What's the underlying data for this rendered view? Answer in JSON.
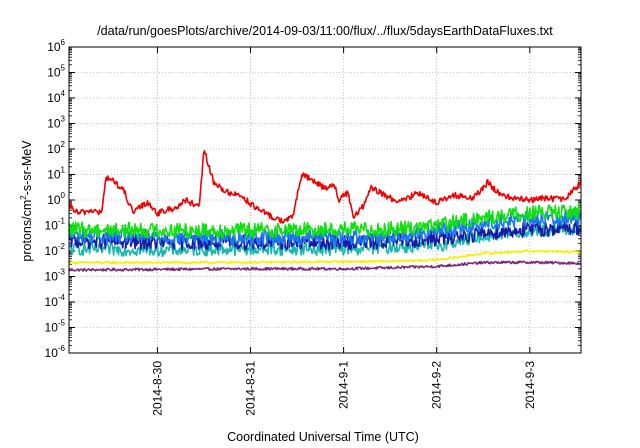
{
  "chart_data": {
    "type": "line",
    "title": "/data/run/goesPlots/archive/2014-09-03/11:00/flux/../flux/5daysEarthDataFluxes.txt",
    "xlabel": "Coordinated Universal Time (UTC)",
    "ylabel": "protons/cm²-s-sr-MeV",
    "ylabel_parts": {
      "prefix": "protons/cm",
      "sup": "2",
      "suffix": "-s-sr-MeV"
    },
    "x_ticks": [
      "2014-8-30",
      "2014-8-31",
      "2014-9-1",
      "2014-9-2",
      "2014-9-3"
    ],
    "x_tick_days": [
      0,
      1,
      2,
      3,
      4
    ],
    "xlim_days": [
      -0.95,
      4.55
    ],
    "y_scale": "log",
    "ylim": [
      1e-06,
      1000000.0
    ],
    "y_tick_labels": [
      {
        "base": "10",
        "exp": "-6"
      },
      {
        "base": "10",
        "exp": "-5"
      },
      {
        "base": "10",
        "exp": "-4"
      },
      {
        "base": "10",
        "exp": "-3"
      },
      {
        "base": "10",
        "exp": "-2"
      },
      {
        "base": "10",
        "exp": "-1"
      },
      {
        "base": "10",
        "exp": "0"
      },
      {
        "base": "10",
        "exp": "1"
      },
      {
        "base": "10",
        "exp": "2"
      },
      {
        "base": "10",
        "exp": "3"
      },
      {
        "base": "10",
        "exp": "4"
      },
      {
        "base": "10",
        "exp": "5"
      },
      {
        "base": "10",
        "exp": "6"
      }
    ],
    "grid": true,
    "legend": "none",
    "series": [
      {
        "color": "#7a2a78",
        "x": [
          -0.95,
          0.0,
          1.0,
          2.0,
          2.5,
          3.0,
          3.5,
          4.0,
          4.55
        ],
        "y": [
          0.0018,
          0.0019,
          0.002,
          0.002,
          0.0022,
          0.0025,
          0.0035,
          0.0036,
          0.0033
        ]
      },
      {
        "color": "#f2f200",
        "x": [
          -0.95,
          0.0,
          1.0,
          2.0,
          2.6,
          3.0,
          3.5,
          4.0,
          4.55
        ],
        "y": [
          0.0035,
          0.0035,
          0.0036,
          0.0038,
          0.004,
          0.0045,
          0.008,
          0.01,
          0.009
        ]
      },
      {
        "color": "#18b8b0",
        "x": [
          -0.95,
          0.0,
          1.0,
          2.0,
          2.5,
          3.0,
          3.5,
          4.0,
          4.55
        ],
        "y": [
          0.012,
          0.011,
          0.012,
          0.012,
          0.014,
          0.016,
          0.04,
          0.06,
          0.07
        ]
      },
      {
        "color": "#1a1aa8",
        "x": [
          -0.95,
          0.0,
          1.0,
          2.0,
          2.5,
          3.0,
          3.5,
          4.0,
          4.55
        ],
        "y": [
          0.025,
          0.022,
          0.022,
          0.022,
          0.025,
          0.03,
          0.05,
          0.07,
          0.085
        ]
      },
      {
        "color": "#1a78f0",
        "x": [
          -0.95,
          0.0,
          1.0,
          2.0,
          2.5,
          3.0,
          3.5,
          4.0,
          4.55
        ],
        "y": [
          0.04,
          0.035,
          0.035,
          0.035,
          0.04,
          0.06,
          0.12,
          0.18,
          0.2
        ]
      },
      {
        "color": "#10e010",
        "x": [
          -0.95,
          0.0,
          1.0,
          2.0,
          2.5,
          3.0,
          3.5,
          4.0,
          4.55
        ],
        "y": [
          0.07,
          0.065,
          0.065,
          0.07,
          0.07,
          0.1,
          0.2,
          0.3,
          0.35
        ]
      },
      {
        "color": "#f00000",
        "x": [
          -0.95,
          -0.85,
          -0.7,
          -0.6,
          -0.55,
          -0.45,
          -0.4,
          -0.35,
          -0.3,
          -0.25,
          -0.2,
          -0.1,
          0.0,
          0.1,
          0.2,
          0.3,
          0.45,
          0.5,
          0.6,
          0.75,
          0.9,
          1.05,
          1.25,
          1.35,
          1.45,
          1.55,
          1.7,
          1.8,
          1.9,
          1.95,
          2.05,
          2.1,
          2.2,
          2.3,
          2.45,
          2.6,
          2.8,
          3.0,
          3.2,
          3.4,
          3.55,
          3.65,
          3.8,
          4.0,
          4.2,
          4.35,
          4.45,
          4.55
        ],
        "y": [
          0.6,
          0.3,
          0.4,
          0.3,
          8,
          5,
          3,
          2,
          0.6,
          0.3,
          0.5,
          0.8,
          0.3,
          0.4,
          0.5,
          1.0,
          0.5,
          100,
          5,
          2,
          1.5,
          0.5,
          0.2,
          0.15,
          0.2,
          10,
          5,
          3,
          4,
          1.0,
          2,
          0.2,
          0.5,
          3,
          1.5,
          0.8,
          2,
          0.8,
          1.5,
          1.2,
          5,
          2,
          1.2,
          1.0,
          1.2,
          1.0,
          2.0,
          5
        ]
      }
    ]
  }
}
